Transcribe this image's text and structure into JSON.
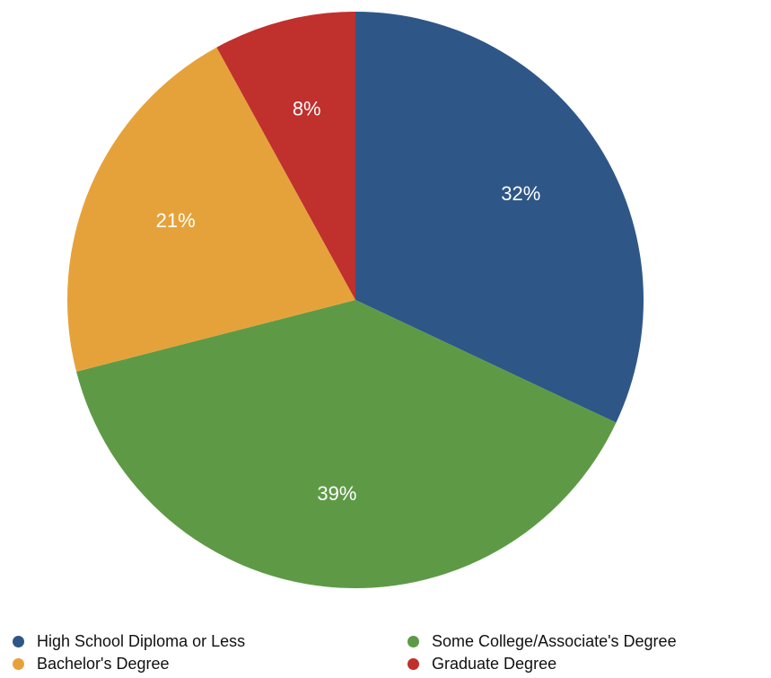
{
  "chart_data": {
    "type": "pie",
    "title": "",
    "start_angle_deg": 0,
    "direction": "clockwise",
    "slices": [
      {
        "name": "High School Diploma or Less",
        "value": 32,
        "label": "32%",
        "color": "#2e5787"
      },
      {
        "name": "Some College/Associate's Degree",
        "value": 39,
        "label": "39%",
        "color": "#5e9a46"
      },
      {
        "name": "Bachelor's Degree",
        "value": 21,
        "label": "21%",
        "color": "#e6a23a"
      },
      {
        "name": "Graduate Degree",
        "value": 8,
        "label": "8%",
        "color": "#c0302d"
      }
    ],
    "legend": {
      "placement": "bottom",
      "columns": 2,
      "items": [
        {
          "name": "High School Diploma or Less",
          "color": "#2e5787"
        },
        {
          "name": "Some College/Associate's Degree",
          "color": "#5e9a46"
        },
        {
          "name": "Bachelor's Degree",
          "color": "#e6a23a"
        },
        {
          "name": "Graduate Degree",
          "color": "#c0302d"
        }
      ]
    }
  }
}
